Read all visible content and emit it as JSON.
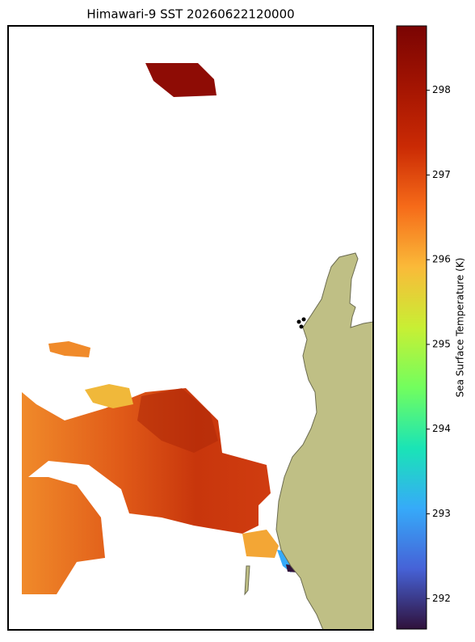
{
  "title": "Himawari-9 SST 20260622120000",
  "colorbar": {
    "label": "Sea Surface Temperature (K)",
    "lim": [
      291.64,
      298.76
    ],
    "ticks": [
      292,
      293,
      294,
      295,
      296,
      297,
      298
    ]
  }
}
